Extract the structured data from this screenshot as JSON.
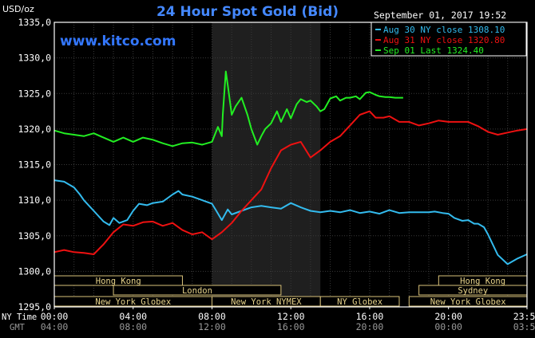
{
  "chart_data": {
    "type": "line",
    "title": "24 Hour Spot Gold (Bid)",
    "y_unit": "USD/oz",
    "watermark": "www.kitco.com",
    "timestamp": "September 01, 2017 19:52",
    "ylim": [
      1295,
      1335
    ],
    "yticks": [
      "1335,0",
      "1330,0",
      "1325,0",
      "1320,0",
      "1315,0",
      "1310,0",
      "1305,0",
      "1300,0",
      "1295,0"
    ],
    "x_hours": [
      0,
      4,
      8,
      12,
      16,
      20,
      23.983
    ],
    "xticks_ny": [
      "00:00",
      "04:00",
      "08:00",
      "12:00",
      "16:00",
      "20:00",
      "23:59"
    ],
    "xticks_gmt": [
      "04:00",
      "08:00",
      "12:00",
      "16:00",
      "20:00",
      "00:00",
      "03:59"
    ],
    "nytime_label": "NY Time",
    "gmt_label": "GMT",
    "highlight_hours": [
      8,
      13.5
    ],
    "series": [
      {
        "name": "Aug 30 NY close 1308.10",
        "color": "#33bbee",
        "x": [
          0,
          0.5,
          1,
          1.3,
          1.5,
          2,
          2.5,
          2.8,
          3,
          3.3,
          3.7,
          4,
          4.3,
          4.7,
          5,
          5.5,
          6,
          6.3,
          6.5,
          7,
          7.5,
          8,
          8.2,
          8.5,
          8.8,
          9,
          9.5,
          10,
          10.5,
          11,
          11.5,
          12,
          12.5,
          13,
          13.5,
          14,
          14.5,
          15,
          15.5,
          16,
          16.5,
          17,
          17.5,
          18,
          18.5,
          19,
          19.3,
          19.7,
          20,
          20.3,
          20.7,
          21,
          21.3,
          21.5,
          21.8,
          22,
          22.5,
          23,
          23.5,
          23.98
        ],
        "values": [
          1312.8,
          1312.6,
          1311.8,
          1310.8,
          1310.0,
          1308.5,
          1307.0,
          1306.5,
          1307.5,
          1306.8,
          1307.2,
          1308.5,
          1309.5,
          1309.3,
          1309.6,
          1309.8,
          1310.8,
          1311.3,
          1310.8,
          1310.5,
          1310.0,
          1309.5,
          1308.6,
          1307.2,
          1308.7,
          1308.0,
          1308.5,
          1309.0,
          1309.2,
          1309.0,
          1308.8,
          1309.6,
          1309.0,
          1308.5,
          1308.3,
          1308.5,
          1308.3,
          1308.6,
          1308.2,
          1308.4,
          1308.1,
          1308.6,
          1308.2,
          1308.3,
          1308.3,
          1308.3,
          1308.4,
          1308.2,
          1308.1,
          1307.5,
          1307.1,
          1307.2,
          1306.7,
          1306.7,
          1306.2,
          1305.2,
          1302.3,
          1301.0,
          1301.8,
          1302.4
        ]
      },
      {
        "name": "Aug 31 NY close 1320.80",
        "color": "#ee1111",
        "x": [
          0,
          0.5,
          1,
          1.5,
          2,
          2.5,
          3,
          3.5,
          4,
          4.5,
          5,
          5.5,
          6,
          6.5,
          7,
          7.5,
          8,
          8.5,
          9,
          9.5,
          10,
          10.5,
          11,
          11.5,
          12,
          12.5,
          13,
          13.5,
          14,
          14.5,
          15,
          15.5,
          16,
          16.3,
          16.7,
          17,
          17.5,
          18,
          18.5,
          19,
          19.5,
          20,
          20.5,
          21,
          21.5,
          22,
          22.5,
          23,
          23.5,
          23.98
        ],
        "values": [
          1302.7,
          1303.0,
          1302.7,
          1302.6,
          1302.4,
          1303.8,
          1305.5,
          1306.6,
          1306.4,
          1306.9,
          1307.0,
          1306.4,
          1306.8,
          1305.8,
          1305.2,
          1305.5,
          1304.5,
          1305.5,
          1306.8,
          1308.5,
          1310.0,
          1311.5,
          1314.5,
          1317.0,
          1317.8,
          1318.2,
          1316.0,
          1317.0,
          1318.2,
          1319.0,
          1320.5,
          1322.0,
          1322.5,
          1321.6,
          1321.6,
          1321.8,
          1321.0,
          1321.0,
          1320.5,
          1320.8,
          1321.2,
          1321.0,
          1321.0,
          1321.0,
          1320.4,
          1319.6,
          1319.2,
          1319.5,
          1319.8,
          1320.0
        ]
      },
      {
        "name": "Sep 01 Last 1324.40",
        "color": "#22ee22",
        "x": [
          0,
          0.5,
          1,
          1.5,
          2,
          2.5,
          3,
          3.5,
          4,
          4.5,
          5,
          5.5,
          6,
          6.5,
          7,
          7.5,
          8,
          8.3,
          8.5,
          8.55,
          8.7,
          8.8,
          9,
          9.2,
          9.5,
          9.8,
          10,
          10.3,
          10.5,
          10.7,
          11,
          11.3,
          11.5,
          11.8,
          12,
          12.3,
          12.5,
          12.8,
          13,
          13.3,
          13.5,
          13.7,
          14,
          14.3,
          14.5,
          14.8,
          15,
          15.3,
          15.5,
          15.8,
          16,
          16.3,
          16.5,
          16.8,
          17,
          17.3,
          17.5,
          17.7
        ],
        "values": [
          1319.8,
          1319.4,
          1319.2,
          1319.0,
          1319.4,
          1318.8,
          1318.2,
          1318.8,
          1318.2,
          1318.8,
          1318.5,
          1318.0,
          1317.6,
          1318.0,
          1318.1,
          1317.8,
          1318.2,
          1320.3,
          1319.0,
          1322.0,
          1328.1,
          1326.2,
          1322.0,
          1323.2,
          1324.4,
          1322.0,
          1320.0,
          1317.8,
          1319.0,
          1320.0,
          1320.8,
          1322.5,
          1321.0,
          1322.8,
          1321.5,
          1323.5,
          1324.2,
          1323.8,
          1324.0,
          1323.2,
          1322.5,
          1322.8,
          1324.3,
          1324.6,
          1324.0,
          1324.4,
          1324.4,
          1324.6,
          1324.2,
          1325.1,
          1325.2,
          1324.8,
          1324.6,
          1324.5,
          1324.5,
          1324.4,
          1324.4,
          1324.4
        ]
      }
    ],
    "sessions": [
      {
        "label": "Hong Kong",
        "start": 0,
        "end": 6.5,
        "row": 0
      },
      {
        "label": "Sydney",
        "start": 18.5,
        "end": 23.98,
        "row": 1
      },
      {
        "label": "Hong Kong",
        "start": 19.5,
        "end": 23.98,
        "row": 0
      },
      {
        "label": "London",
        "start": 3,
        "end": 11.5,
        "row": 1
      },
      {
        "label": "New York Globex",
        "start": 0,
        "end": 8,
        "row": 2
      },
      {
        "label": "New York NYMEX",
        "start": 8,
        "end": 13.5,
        "row": 2
      },
      {
        "label": "NY Globex",
        "start": 13.5,
        "end": 17.5,
        "row": 2
      },
      {
        "label": "New York Globex",
        "start": 18,
        "end": 23.98,
        "row": 2
      }
    ]
  }
}
